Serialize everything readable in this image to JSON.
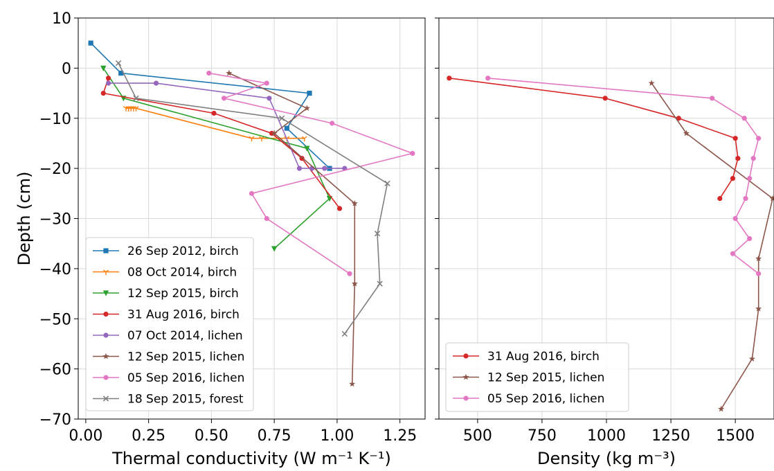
{
  "chart_data": [
    {
      "type": "line",
      "xlabel": "Thermal conductivity (W m⁻¹ K⁻¹)",
      "ylabel": "Depth (cm)",
      "xlim": [
        -0.03,
        1.35
      ],
      "ylim": [
        -70,
        10
      ],
      "xticks": [
        0.0,
        0.25,
        0.5,
        0.75,
        1.0,
        1.25
      ],
      "xtick_labels": [
        "0.00",
        "0.25",
        "0.50",
        "0.75",
        "1.00",
        "1.25"
      ],
      "yticks": [
        10,
        0,
        -10,
        -20,
        -30,
        -40,
        -50,
        -60,
        -70
      ],
      "ytick_labels": [
        "10",
        "0",
        "−10",
        "−20",
        "−30",
        "−40",
        "−50",
        "−60",
        "−70"
      ],
      "grid": true,
      "legend_position": "lower-left",
      "series": [
        {
          "name": "26 Sep 2012, birch",
          "color": "#1f77b4",
          "marker": "square",
          "x": [
            0.02,
            0.14,
            0.89,
            0.8,
            0.97
          ],
          "y": [
            5,
            -1,
            -5,
            -12,
            -20
          ]
        },
        {
          "name": "08 Oct 2014, birch",
          "color": "#ff7f0e",
          "marker": "tri-down",
          "x": [
            0.16,
            0.17,
            0.17,
            0.18,
            0.19,
            0.2,
            0.66,
            0.7,
            0.8,
            0.87
          ],
          "y": [
            -8,
            -8,
            -8,
            -8,
            -8,
            -8,
            -14,
            -14,
            -14,
            -14
          ]
        },
        {
          "name": "12 Sep 2015, birch",
          "color": "#2ca02c",
          "marker": "triangle-down",
          "x": [
            0.07,
            0.15,
            0.88,
            0.97,
            0.75
          ],
          "y": [
            0,
            -6,
            -16,
            -26,
            -36
          ]
        },
        {
          "name": "31 Aug 2016, birch",
          "color": "#d62728",
          "marker": "circle",
          "x": [
            0.09,
            0.07,
            0.51,
            0.74,
            0.86,
            1.01
          ],
          "y": [
            -2,
            -5,
            -9,
            -13,
            -18,
            -28
          ]
        },
        {
          "name": "07 Oct 2014, lichen",
          "color": "#9467bd",
          "marker": "circle",
          "x": [
            0.09,
            0.28,
            0.73,
            0.85,
            0.9,
            0.95,
            1.03
          ],
          "y": [
            -3,
            -3,
            -6,
            -20,
            -20,
            -20,
            -20
          ]
        },
        {
          "name": "12 Sep 2015, lichen",
          "color": "#8c564b",
          "marker": "star",
          "x": [
            0.57,
            0.88,
            0.75,
            1.07,
            1.07,
            1.06
          ],
          "y": [
            -1,
            -8,
            -13,
            -27,
            -43,
            -63
          ]
        },
        {
          "name": "05 Sep 2016, lichen",
          "color": "#e377c2",
          "marker": "circle",
          "x": [
            0.49,
            0.72,
            0.55,
            0.98,
            1.3,
            0.66,
            0.72,
            1.05
          ],
          "y": [
            -1,
            -3,
            -6,
            -11,
            -17,
            -25,
            -30,
            -41
          ]
        },
        {
          "name": "18 Sep 2015, forest",
          "color": "#7f7f7f",
          "marker": "x",
          "x": [
            0.13,
            0.2,
            0.78,
            1.2,
            1.16,
            1.17,
            1.03
          ],
          "y": [
            1,
            -6,
            -10,
            -23,
            -33,
            -43,
            -53
          ]
        }
      ]
    },
    {
      "type": "line",
      "xlabel": "Density (kg m⁻³)",
      "ylabel": "",
      "xlim": [
        350,
        1650
      ],
      "ylim": [
        -70,
        10
      ],
      "xticks": [
        500,
        750,
        1000,
        1250,
        1500
      ],
      "xtick_labels": [
        "500",
        "750",
        "1000",
        "1250",
        "1500"
      ],
      "grid": true,
      "legend_position": "lower-left",
      "series": [
        {
          "name": "31 Aug 2016, birch",
          "color": "#d62728",
          "marker": "circle",
          "x": [
            390,
            995,
            1280,
            1500,
            1510,
            1490,
            1440
          ],
          "y": [
            -2,
            -6,
            -10,
            -14,
            -18,
            -22,
            -26
          ]
        },
        {
          "name": "12 Sep 2015, lichen",
          "color": "#8c564b",
          "marker": "star",
          "x": [
            1175,
            1310,
            1645,
            1590,
            1590,
            1565,
            1445
          ],
          "y": [
            -3,
            -13,
            -26,
            -38,
            -48,
            -58,
            -68
          ]
        },
        {
          "name": "05 Sep 2016, lichen",
          "color": "#e377c2",
          "marker": "circle",
          "x": [
            540,
            1410,
            1535,
            1590,
            1570,
            1555,
            1540,
            1500,
            1555,
            1490,
            1590
          ],
          "y": [
            -2,
            -6,
            -10,
            -14,
            -18,
            -22,
            -26,
            -30,
            -34,
            -37,
            -41
          ]
        }
      ]
    }
  ]
}
